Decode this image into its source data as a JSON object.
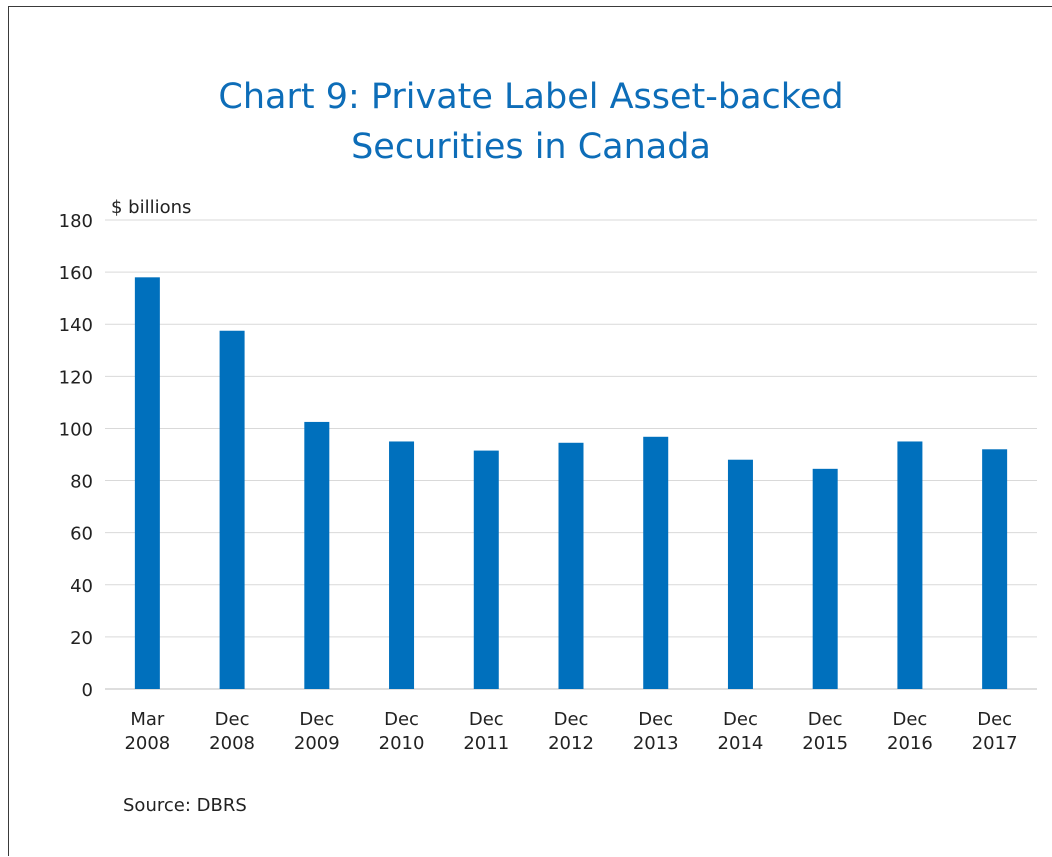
{
  "chart_data": {
    "type": "bar",
    "title_lines": [
      "Chart 9: Private Label Asset-backed",
      "Securities in Canada"
    ],
    "ylabel": "$ billions",
    "xlabel": "",
    "categories": [
      [
        "Mar",
        "2008"
      ],
      [
        "Dec",
        "2008"
      ],
      [
        "Dec",
        "2009"
      ],
      [
        "Dec",
        "2010"
      ],
      [
        "Dec",
        "2011"
      ],
      [
        "Dec",
        "2012"
      ],
      [
        "Dec",
        "2013"
      ],
      [
        "Dec",
        "2014"
      ],
      [
        "Dec",
        "2015"
      ],
      [
        "Dec",
        "2016"
      ],
      [
        "Dec",
        "2017"
      ]
    ],
    "values": [
      158,
      137.5,
      102.5,
      95,
      91.5,
      94.5,
      96.8,
      88,
      84.5,
      95,
      92
    ],
    "ylim": [
      0,
      180
    ],
    "yticks": [
      0,
      20,
      40,
      60,
      80,
      100,
      120,
      140,
      160,
      180
    ],
    "grid": true,
    "legend": "none",
    "bar_color": "#0070bd",
    "source": "Source: DBRS"
  }
}
